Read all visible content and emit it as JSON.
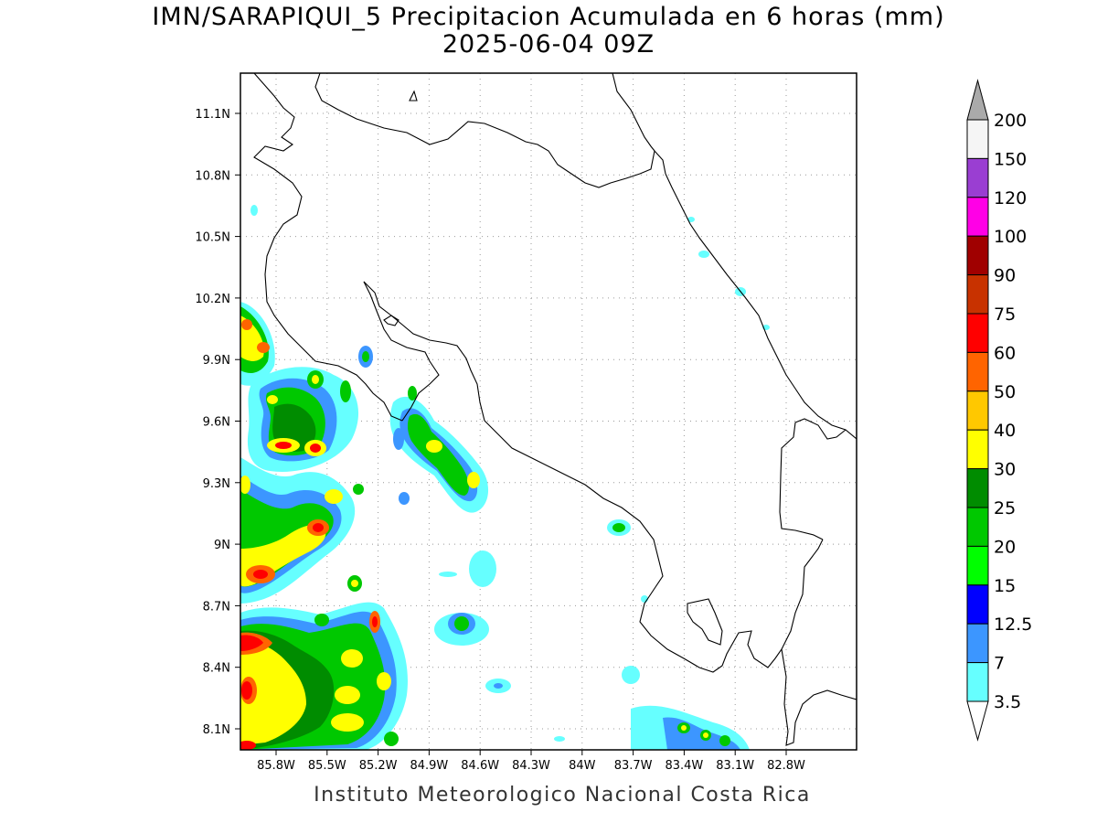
{
  "title": {
    "line1": "IMN/SARAPIQUI_5 Precipitacion Acumulada en 6 horas (mm)",
    "line2": "2025-06-04 09Z"
  },
  "footer": "Instituto Meteorologico Nacional Costa Rica",
  "map": {
    "lon_labels": [
      "85.8W",
      "85.5W",
      "85.2W",
      "84.9W",
      "84.6W",
      "84.3W",
      "84W",
      "83.7W",
      "83.4W",
      "83.1W",
      "82.8W"
    ],
    "lat_labels": [
      "11.1N",
      "10.8N",
      "10.5N",
      "10.2N",
      "9.9N",
      "9.6N",
      "9.3N",
      "9N",
      "8.7N",
      "8.4N",
      "8.1N"
    ],
    "grid": true
  },
  "colorbar": {
    "labels": [
      "200",
      "150",
      "120",
      "100",
      "90",
      "75",
      "60",
      "50",
      "40",
      "30",
      "25",
      "20",
      "15",
      "12.5",
      "7",
      "3.5"
    ],
    "colors": [
      "#aaaaaa",
      "#f5f5f5",
      "#9a3ed2",
      "#ff00e6",
      "#a00000",
      "#c83200",
      "#ff0000",
      "#ff6400",
      "#ffc800",
      "#ffff00",
      "#008c00",
      "#00c800",
      "#00ff00",
      "#0000ff",
      "#3c96ff",
      "#66ffff",
      "#ffffff"
    ]
  }
}
